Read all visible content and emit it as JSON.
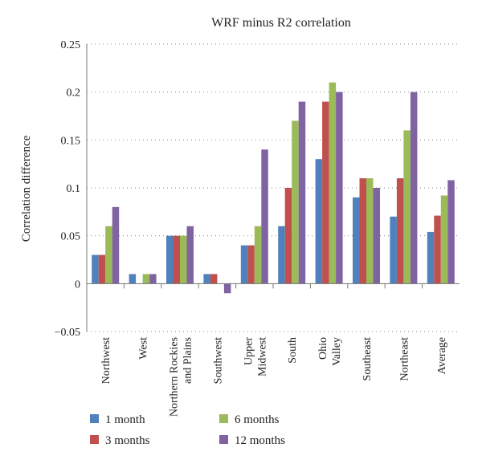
{
  "chart_data": {
    "type": "bar",
    "title": "WRF minus R2 correlation",
    "xlabel": "",
    "ylabel": "Correlation difference",
    "ylim": [
      -0.05,
      0.25
    ],
    "yticks": [
      "0.25",
      "0.2",
      "0.15",
      "0.1",
      "0.05",
      "0",
      "−0.05"
    ],
    "ytick_values": [
      0.25,
      0.2,
      0.15,
      0.1,
      0.05,
      0,
      -0.05
    ],
    "grid": "horizontal dotted",
    "legend_position": "bottom",
    "categories": [
      [
        "Northwest"
      ],
      [
        "West"
      ],
      [
        "Northern Rockies",
        "and Plains"
      ],
      [
        "Southwest"
      ],
      [
        "Upper",
        "Midwest"
      ],
      [
        "South"
      ],
      [
        "Ohio",
        "Valley"
      ],
      [
        "Southeast"
      ],
      [
        "Northeast"
      ],
      [
        "Average"
      ]
    ],
    "series": [
      {
        "name": "1 month",
        "color": "#4f81bd",
        "values": [
          0.03,
          0.01,
          0.05,
          0.01,
          0.04,
          0.06,
          0.13,
          0.09,
          0.07,
          0.054
        ]
      },
      {
        "name": "3 months",
        "color": "#c0504d",
        "values": [
          0.03,
          0.0,
          0.05,
          0.01,
          0.04,
          0.1,
          0.19,
          0.11,
          0.11,
          0.071
        ]
      },
      {
        "name": "6 months",
        "color": "#9bbb59",
        "values": [
          0.06,
          0.01,
          0.05,
          0.0,
          0.06,
          0.17,
          0.21,
          0.11,
          0.16,
          0.092
        ]
      },
      {
        "name": "12 months",
        "color": "#8064a2",
        "values": [
          0.08,
          0.01,
          0.06,
          -0.01,
          0.14,
          0.19,
          0.2,
          0.1,
          0.2,
          0.108
        ]
      }
    ]
  }
}
